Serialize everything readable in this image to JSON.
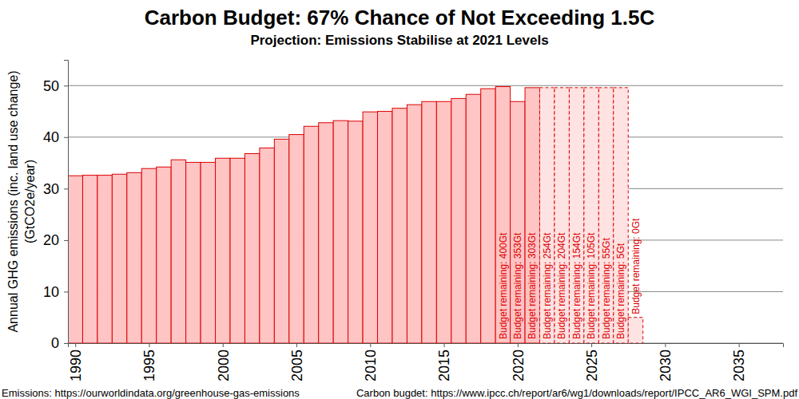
{
  "chart_data": {
    "type": "bar",
    "title": "Carbon Budget: 67% Chance of Not Exceeding 1.5C",
    "subtitle": "Projection: Emissions Stabilise at 2021 Levels",
    "ylabel": [
      "Annual GHG emissions (inc. land use change)",
      "(GtCO2e/year)"
    ],
    "x": [
      1990,
      1991,
      1992,
      1993,
      1994,
      1995,
      1996,
      1997,
      1998,
      1999,
      2000,
      2001,
      2002,
      2003,
      2004,
      2005,
      2006,
      2007,
      2008,
      2009,
      2010,
      2011,
      2012,
      2013,
      2014,
      2015,
      2016,
      2017,
      2018,
      2019,
      2020,
      2021,
      2022,
      2023,
      2024,
      2025,
      2026,
      2027,
      2028
    ],
    "series": [
      {
        "color": "#ffc4c4",
        "line_style": "solid",
        "values": [
          32.5,
          32.6,
          32.6,
          32.8,
          33.1,
          33.9,
          34.2,
          35.6,
          35.1,
          35.1,
          35.9,
          35.9,
          36.8,
          37.9,
          39.6,
          40.5,
          42.1,
          42.8,
          43.2,
          43.1,
          44.9,
          45.0,
          45.6,
          46.3,
          46.9,
          46.9,
          47.5,
          48.3,
          49.4,
          49.8,
          46.9,
          49.6,
          null,
          null,
          null,
          null,
          null,
          null,
          null
        ]
      },
      {
        "color": "#ffe2e2",
        "line_style": "dashed",
        "values": [
          null,
          null,
          null,
          null,
          null,
          null,
          null,
          null,
          null,
          null,
          null,
          null,
          null,
          null,
          null,
          null,
          null,
          null,
          null,
          null,
          null,
          null,
          null,
          null,
          null,
          null,
          null,
          null,
          null,
          null,
          null,
          null,
          49.6,
          49.6,
          49.6,
          49.6,
          49.6,
          49.6,
          5
        ]
      }
    ],
    "annotations": [
      {
        "x": 2019,
        "text": "Budget remaining: 400Gt"
      },
      {
        "x": 2020,
        "text": "Budget remaining: 353Gt"
      },
      {
        "x": 2021,
        "text": "Budget remaining: 303Gt"
      },
      {
        "x": 2022,
        "text": "Budget remaining: 254Gt"
      },
      {
        "x": 2023,
        "text": "Budget remaining: 204Gt"
      },
      {
        "x": 2024,
        "text": "Budget remaining: 154Gt"
      },
      {
        "x": 2025,
        "text": "Budget remaining: 105Gt"
      },
      {
        "x": 2026,
        "text": "Budget remaining: 55Gt"
      },
      {
        "x": 2027,
        "text": "Budget remaining: 5Gt"
      },
      {
        "x": 2028,
        "text": "Budget remaining: 0Gt"
      }
    ],
    "xlim": [
      1989.5,
      2038
    ],
    "xticks": [
      1990,
      1995,
      2000,
      2005,
      2010,
      2015,
      2020,
      2025,
      2030,
      2035
    ],
    "ylim": [
      0,
      55
    ],
    "yticks": [
      0,
      10,
      20,
      30,
      40,
      50
    ],
    "grid": true,
    "footnotes": [
      "Emissions: https://ourworldindata.org/greenhouse-gas-emissions",
      "Carbon bugdet: https://www.ipcc.ch/report/ar6/wg1/downloads/report/IPCC_AR6_WGI_SPM.pdf"
    ]
  }
}
